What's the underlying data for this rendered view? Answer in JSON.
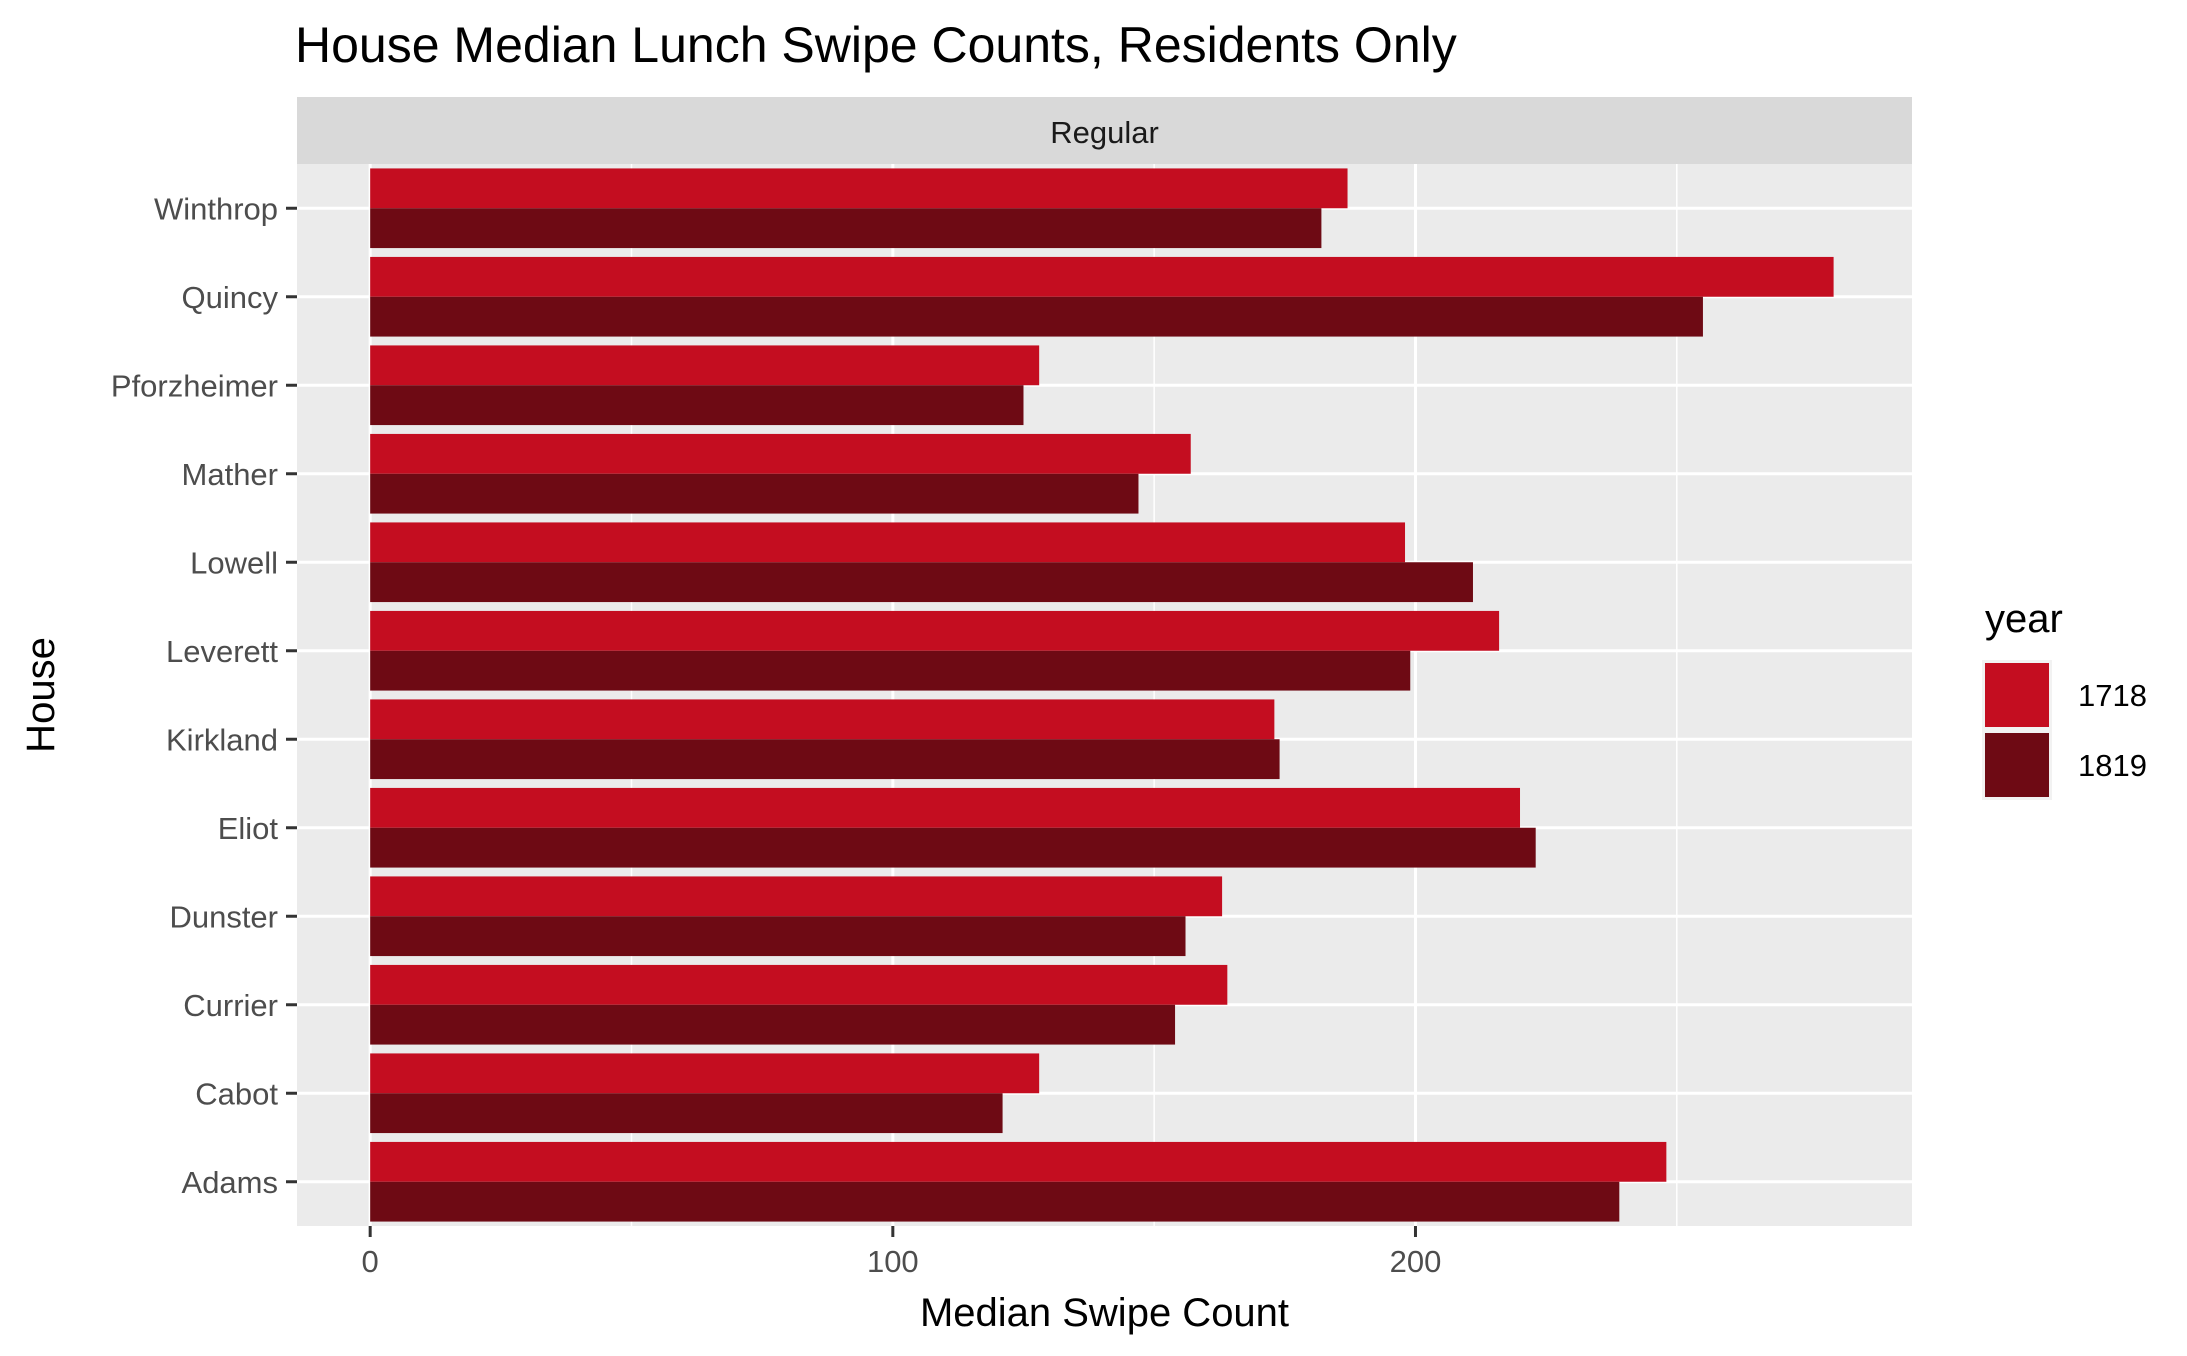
{
  "chart_data": {
    "type": "bar",
    "orientation": "horizontal",
    "title": "House Median Lunch Swipe Counts, Residents Only",
    "facet_label": "Regular",
    "xlabel": "Median Swipe Count",
    "ylabel": "House",
    "xlim": [
      -14,
      295
    ],
    "x_ticks": [
      0,
      100,
      200
    ],
    "x_tick_labels": [
      "0",
      "100",
      "200"
    ],
    "grid": true,
    "legend": {
      "title": "year",
      "position": "right"
    },
    "categories": [
      "Adams",
      "Cabot",
      "Currier",
      "Dunster",
      "Eliot",
      "Kirkland",
      "Leverett",
      "Lowell",
      "Mather",
      "Pforzheimer",
      "Quincy",
      "Winthrop"
    ],
    "series": [
      {
        "name": "1718",
        "color": "#C40D20",
        "values": [
          248,
          128,
          164,
          163,
          220,
          173,
          216,
          198,
          157,
          128,
          280,
          187
        ]
      },
      {
        "name": "1819",
        "color": "#6E0A14",
        "values": [
          239,
          121,
          154,
          156,
          223,
          174,
          199,
          211,
          147,
          125,
          255,
          182
        ]
      }
    ]
  }
}
